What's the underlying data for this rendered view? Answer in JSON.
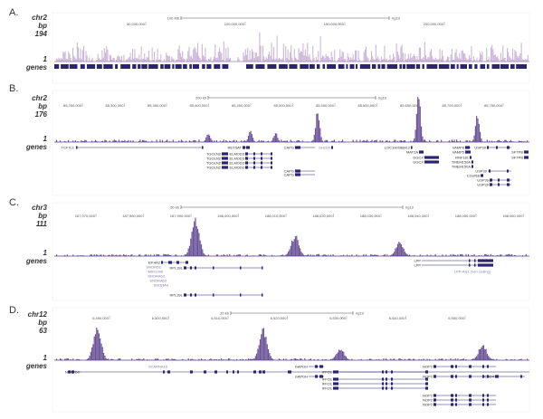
{
  "panels": [
    {
      "letter": "A.",
      "chrom": "chr2",
      "bp_label": "bp",
      "ymax": "194",
      "ymin": "1",
      "genes_label": "genes",
      "scale_label": "100 Mb",
      "assembly": "hg19",
      "ticks": [
        "50,000,000",
        "100,000,000",
        "150,000,000",
        "200,000,000"
      ],
      "color": "#a07ab8",
      "gene_names": []
    },
    {
      "letter": "B.",
      "chrom": "chr2",
      "bp_label": "bp",
      "ymax": "176",
      "ymin": "1",
      "genes_label": "genes",
      "scale_label": "200 kb",
      "assembly": "hg19",
      "ticks": [
        "85,250,000",
        "85,300,000",
        "85,350,000",
        "85,400,000",
        "85,450,000",
        "85,500,000",
        "85,550,000",
        "85,600,000",
        "85,650,000",
        "85,700,000",
        "85,750,000"
      ],
      "color": "#5a3e8c",
      "gene_names": [
        "TCF7L1",
        "TGOLN2",
        "TGOLN2",
        "TGOLN2",
        "TGOLN2",
        "RETSAT",
        "ELMOD3",
        "ELMOD3",
        "ELMOD3",
        "ELMOD3",
        "CAPG",
        "CAPG",
        "CAPG",
        "SH2D6",
        "LOC100288412",
        "MAT2A",
        "GGCX",
        "GGCX",
        "VAMP8",
        "VAMP5",
        "RNF181",
        "TMEM150A",
        "TMEM150A",
        "USP39",
        "USP39",
        "C2orf68",
        "USP39",
        "USP39",
        "SFTPB",
        "SFTPB"
      ]
    },
    {
      "letter": "C.",
      "chrom": "chr3",
      "bp_label": "bp",
      "ymax": "111",
      "ymin": "1",
      "genes_label": "genes",
      "scale_label": "50 kb",
      "assembly": "hg19",
      "ticks": [
        "187,970,000",
        "187,980,000",
        "187,990,000",
        "188,000,000",
        "188,010,000",
        "188,020,000",
        "188,030,000",
        "188,040,000",
        "188,050,000",
        "188,060,000"
      ],
      "color": "#5a3e8c",
      "gene_names": [
        "EIF4A2",
        "SNORD2",
        "MIR1248",
        "SNORA63",
        "SNORA63",
        "SNORA4",
        "RPL39L",
        "RPL39L",
        "LPP",
        "LPP",
        "LPP-AS1 (non-coding)"
      ]
    },
    {
      "letter": "D.",
      "chrom": "chr12",
      "bp_label": "bp",
      "ymax": "63",
      "ymin": "1",
      "genes_label": "genes",
      "scale_label": "20 kb",
      "assembly": "hg19",
      "ticks": [
        "6,490,000",
        "6,500,000",
        "6,510,000",
        "6,520,000",
        "6,530,000",
        "6,540,000",
        "6,550,000"
      ],
      "color": "#5a3e8c",
      "gene_names": [
        "NCAPD2",
        "SCARNA10",
        "GAPDH",
        "GAPDH",
        "IFFO1",
        "IFFO1",
        "IFFO1",
        "IFFO1",
        "NOP2",
        "NOP2",
        "NOP2",
        "NOP2",
        "NOP2",
        "CHD4"
      ]
    }
  ],
  "chart_data": [
    {
      "type": "area",
      "title": "A. chr2",
      "ylabel": "bp",
      "ylim": [
        1,
        194
      ],
      "xlabel": "",
      "tick_labels": [
        "50,000,000",
        "100,000,000",
        "150,000,000",
        "200,000,000"
      ],
      "peaks": [
        {
          "x": 0.28,
          "y": 150
        },
        {
          "x": 0.45,
          "y": 194
        },
        {
          "x": 0.72,
          "y": 160
        }
      ]
    },
    {
      "type": "area",
      "title": "B. chr2",
      "ylabel": "bp",
      "ylim": [
        1,
        176
      ],
      "peaks": [
        {
          "x": 85400000,
          "y": 35
        },
        {
          "x": 85450000,
          "y": 45
        },
        {
          "x": 85480000,
          "y": 35
        },
        {
          "x": 85530000,
          "y": 120
        },
        {
          "x": 85650000,
          "y": 176
        },
        {
          "x": 85720000,
          "y": 110
        }
      ]
    },
    {
      "type": "area",
      "title": "C. chr3",
      "ylabel": "bp",
      "ylim": [
        1,
        111
      ],
      "peaks": [
        {
          "x": 187991000,
          "y": 111
        },
        {
          "x": 188012000,
          "y": 60
        },
        {
          "x": 188034000,
          "y": 40
        }
      ]
    },
    {
      "type": "area",
      "title": "D. chr12",
      "ylabel": "bp",
      "ylim": [
        1,
        63
      ],
      "peaks": [
        {
          "x": 6488000,
          "y": 63
        },
        {
          "x": 6516000,
          "y": 58
        },
        {
          "x": 6529000,
          "y": 22
        },
        {
          "x": 6553000,
          "y": 30
        }
      ]
    }
  ]
}
